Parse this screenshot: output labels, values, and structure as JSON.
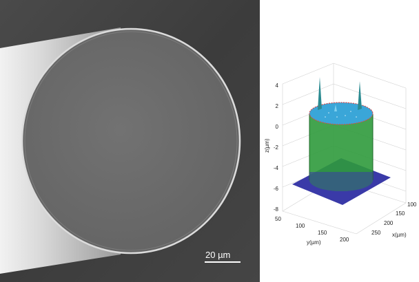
{
  "sem_image": {
    "scale_bar_label": "20 µm"
  },
  "surface_plot": {
    "z_axis_label": "z(µm)",
    "x_axis_label": "x(µm)",
    "y_axis_label": "y(µm)",
    "z_ticks": [
      "4",
      "2",
      "0",
      "-2",
      "-4",
      "-6",
      "-8"
    ],
    "x_ticks": [
      "100",
      "150",
      "200",
      "250"
    ],
    "y_ticks": [
      "50",
      "100",
      "150",
      "200"
    ],
    "colors": {
      "cylinder": "#2f9a3c",
      "top_surface": "#3aa6d8",
      "base_plane": "#3a3aa8",
      "rim": "#d94a4a"
    }
  }
}
